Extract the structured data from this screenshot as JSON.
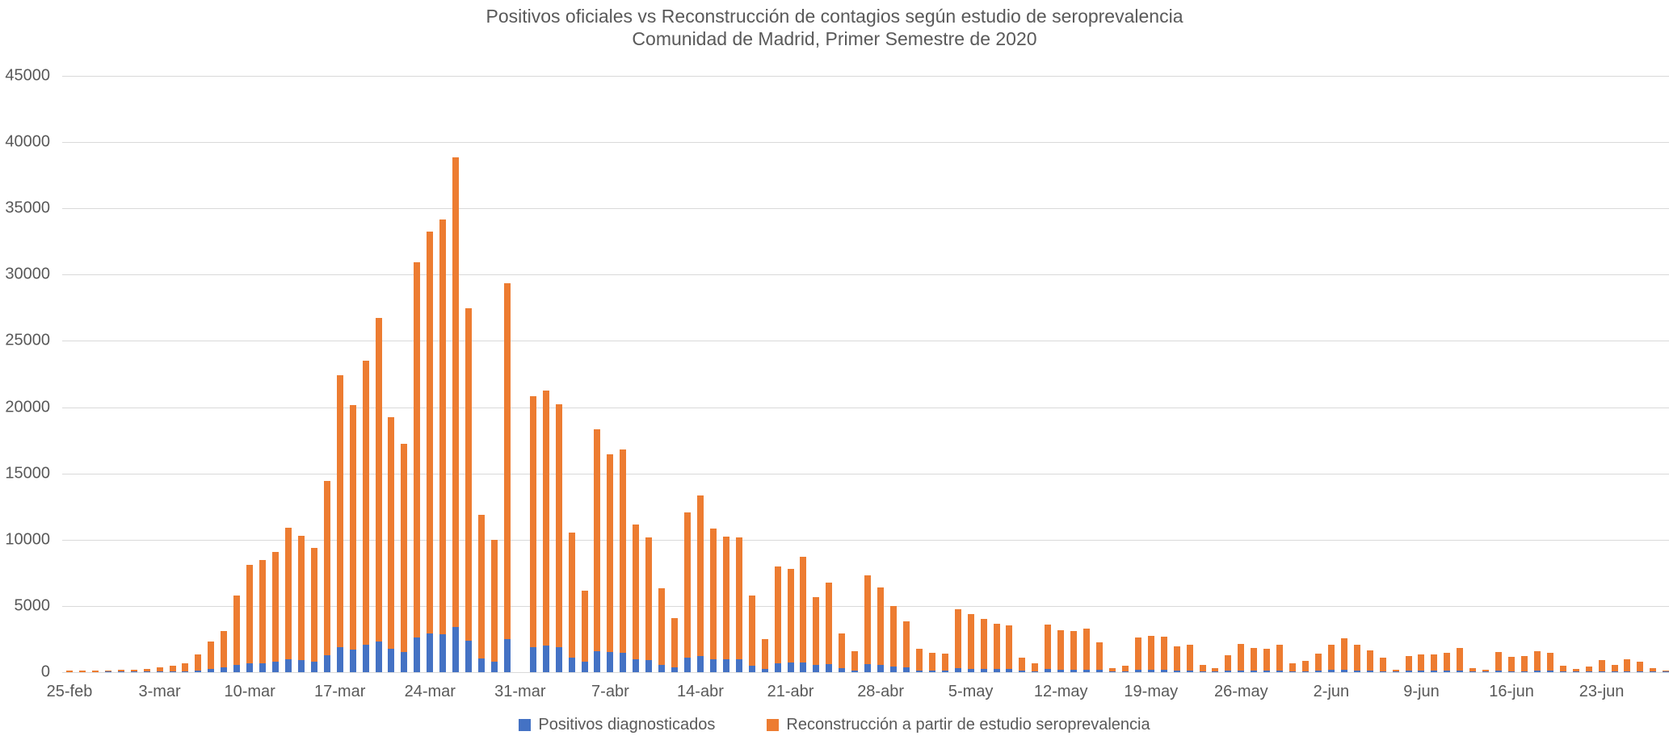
{
  "colors": {
    "positivos_blue": "#4472C4",
    "reconstruccion_orange": "#ED7C31",
    "gridline_gray": "#D9D9D9",
    "text_gray": "#595959",
    "background": "#FFFFFF"
  },
  "chart_data": {
    "type": "bar",
    "title": "Positivos oficiales vs Reconstrucción de contagios según estudio de seroprevalencia",
    "subtitle": "Comunidad de Madrid, Primer Semestre de 2020",
    "bar_style": "overlapped-daily-columns",
    "grid": true,
    "legend_position": "bottom",
    "ylim": [
      0,
      45000
    ],
    "y_ticks": [
      "0",
      "5000",
      "10000",
      "15000",
      "20000",
      "25000",
      "30000",
      "35000",
      "40000",
      "45000"
    ],
    "x_tick_labels": [
      "25-feb",
      "3-mar",
      "10-mar",
      "17-mar",
      "24-mar",
      "31-mar",
      "7-abr",
      "14-abr",
      "21-abr",
      "28-abr",
      "5-may",
      "12-may",
      "19-may",
      "26-may",
      "2-jun",
      "9-jun",
      "16-jun",
      "23-jun"
    ],
    "x_tick_every": 7,
    "categories": [
      "25-feb",
      "26-feb",
      "27-feb",
      "28-feb",
      "29-feb",
      "1-mar",
      "2-mar",
      "3-mar",
      "4-mar",
      "5-mar",
      "6-mar",
      "7-mar",
      "8-mar",
      "9-mar",
      "10-mar",
      "11-mar",
      "12-mar",
      "13-mar",
      "14-mar",
      "15-mar",
      "16-mar",
      "17-mar",
      "18-mar",
      "19-mar",
      "20-mar",
      "21-mar",
      "22-mar",
      "23-mar",
      "24-mar",
      "25-mar",
      "26-mar",
      "27-mar",
      "28-mar",
      "29-mar",
      "30-mar",
      "31-mar",
      "1-abr",
      "2-abr",
      "3-abr",
      "4-abr",
      "5-abr",
      "6-abr",
      "7-abr",
      "8-abr",
      "9-abr",
      "10-abr",
      "11-abr",
      "12-abr",
      "13-abr",
      "14-abr",
      "15-abr",
      "16-abr",
      "17-abr",
      "18-abr",
      "19-abr",
      "20-abr",
      "21-abr",
      "22-abr",
      "23-abr",
      "24-abr",
      "25-abr",
      "26-abr",
      "27-abr",
      "28-abr",
      "29-abr",
      "30-abr",
      "1-may",
      "2-may",
      "3-may",
      "4-may",
      "5-may",
      "6-may",
      "7-may",
      "8-may",
      "9-may",
      "10-may",
      "11-may",
      "12-may",
      "13-may",
      "14-may",
      "15-may",
      "16-may",
      "17-may",
      "18-may",
      "19-may",
      "20-may",
      "21-may",
      "22-may",
      "23-may",
      "24-may",
      "25-may",
      "26-may",
      "27-may",
      "28-may",
      "29-may",
      "30-may",
      "31-may",
      "1-jun",
      "2-jun",
      "3-jun",
      "4-jun",
      "5-jun",
      "6-jun",
      "7-jun",
      "8-jun",
      "9-jun",
      "10-jun",
      "11-jun",
      "12-jun",
      "13-jun",
      "14-jun",
      "15-jun",
      "16-jun",
      "17-jun",
      "18-jun",
      "19-jun",
      "20-jun",
      "21-jun",
      "22-jun",
      "23-jun",
      "24-jun",
      "25-jun",
      "26-jun",
      "27-jun",
      "28-jun"
    ],
    "series": [
      {
        "name": "Positivos diagnosticados",
        "color": "#4472C4",
        "values": [
          0,
          0,
          0,
          10,
          10,
          10,
          20,
          30,
          40,
          60,
          150,
          250,
          350,
          540,
          660,
          700,
          810,
          990,
          910,
          770,
          1270,
          1890,
          1710,
          2070,
          2300,
          1750,
          1510,
          2620,
          2920,
          2880,
          3430,
          2380,
          1010,
          810,
          2520,
          0,
          1880,
          2000,
          1900,
          1100,
          800,
          1600,
          1500,
          1490,
          990,
          890,
          550,
          390,
          1090,
          1190,
          990,
          990,
          950,
          490,
          220,
          690,
          730,
          750,
          550,
          630,
          280,
          120,
          590,
          550,
          430,
          350,
          150,
          130,
          130,
          280,
          260,
          250,
          230,
          220,
          100,
          80,
          220,
          200,
          200,
          200,
          160,
          60,
          70,
          170,
          180,
          180,
          150,
          150,
          60,
          50,
          110,
          150,
          140,
          130,
          150,
          70,
          80,
          110,
          200,
          160,
          140,
          120,
          90,
          40,
          100,
          100,
          100,
          110,
          120,
          40,
          30,
          110,
          90,
          90,
          110,
          100,
          50,
          40,
          50,
          70,
          60,
          80,
          70,
          40,
          20
        ]
      },
      {
        "name": "Reconstrucción a partir de estudio seroprevalencia",
        "color": "#ED7C31",
        "values": [
          100,
          110,
          120,
          150,
          160,
          170,
          250,
          350,
          460,
          640,
          1310,
          2300,
          3080,
          5760,
          8090,
          8490,
          9100,
          10910,
          10270,
          9360,
          14450,
          22420,
          20160,
          23530,
          26760,
          19250,
          17230,
          30930,
          33270,
          34160,
          38850,
          27470,
          11860,
          10010,
          29370,
          0,
          20800,
          21250,
          20240,
          10520,
          6170,
          18340,
          16440,
          16780,
          11150,
          10190,
          6320,
          4110,
          12060,
          13310,
          10850,
          10210,
          10150,
          5780,
          2500,
          7990,
          7790,
          8680,
          5660,
          6760,
          2940,
          1590,
          7290,
          6420,
          5010,
          3830,
          1780,
          1470,
          1410,
          4770,
          4400,
          4040,
          3640,
          3540,
          1070,
          690,
          3580,
          3140,
          3100,
          3260,
          2230,
          310,
          510,
          2630,
          2730,
          2690,
          1930,
          2040,
          570,
          280,
          1250,
          2140,
          1850,
          1750,
          2040,
          670,
          830,
          1410,
          2080,
          2580,
          2040,
          1650,
          1070,
          160,
          1190,
          1330,
          1370,
          1470,
          1810,
          300,
          200,
          1510,
          1130,
          1210,
          1610,
          1470,
          460,
          260,
          420,
          890,
          560,
          970,
          810,
          300,
          120
        ]
      }
    ]
  }
}
